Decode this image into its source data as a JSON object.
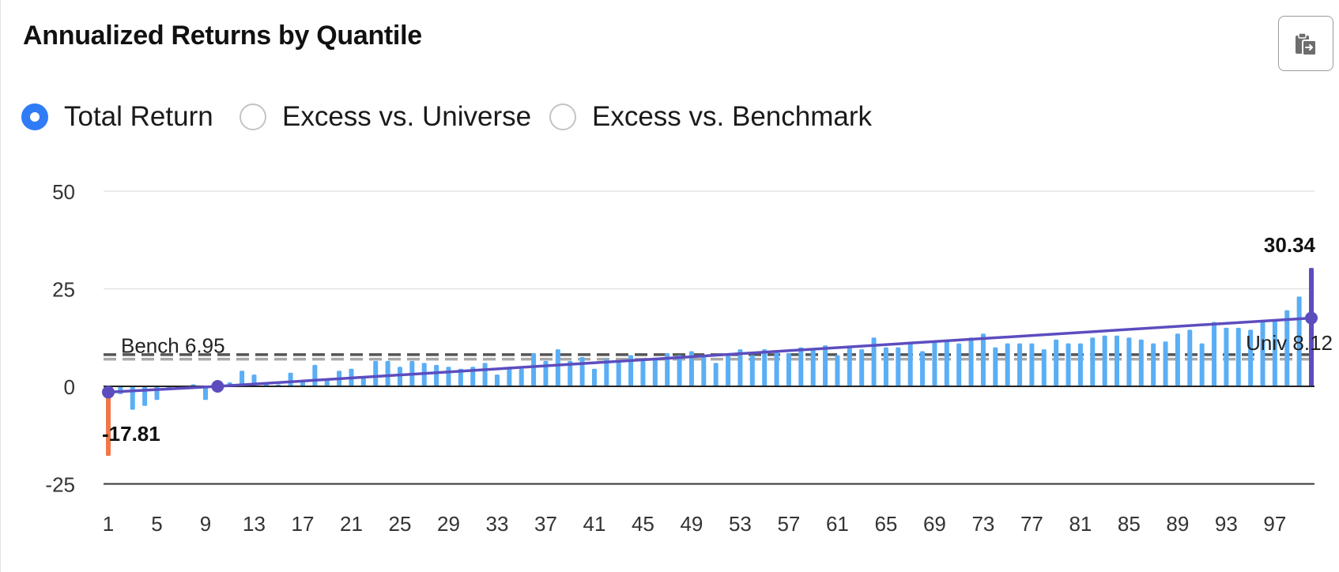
{
  "header": {
    "title": "Annualized Returns by Quantile"
  },
  "copy_icon": "clipboard-copy-icon",
  "radios": [
    {
      "label": "Total Return",
      "checked": true
    },
    {
      "label": "Excess vs. Universe",
      "checked": false
    },
    {
      "label": "Excess vs. Benchmark",
      "checked": false
    }
  ],
  "colors": {
    "bar": "#5aaef5",
    "bar_min": "#f07848",
    "bar_max": "#5c4dbf",
    "trend": "#5c4dbf",
    "bench_line": "#a8a8a8",
    "univ_line": "#555555",
    "grid": "#e4e4e4",
    "radio_accent": "#2f7cf6"
  },
  "chart_data": {
    "type": "bar",
    "title": "Annualized Returns by Quantile",
    "xlabel": "",
    "ylabel": "",
    "ylim": [
      -25,
      50
    ],
    "yticks": [
      50,
      25,
      0,
      -25
    ],
    "x": [
      1,
      2,
      3,
      4,
      5,
      6,
      7,
      8,
      9,
      10,
      11,
      12,
      13,
      14,
      15,
      16,
      17,
      18,
      19,
      20,
      21,
      22,
      23,
      24,
      25,
      26,
      27,
      28,
      29,
      30,
      31,
      32,
      33,
      34,
      35,
      36,
      37,
      38,
      39,
      40,
      41,
      42,
      43,
      44,
      45,
      46,
      47,
      48,
      49,
      50,
      51,
      52,
      53,
      54,
      55,
      56,
      57,
      58,
      59,
      60,
      61,
      62,
      63,
      64,
      65,
      66,
      67,
      68,
      69,
      70,
      71,
      72,
      73,
      74,
      75,
      76,
      77,
      78,
      79,
      80,
      81,
      82,
      83,
      84,
      85,
      86,
      87,
      88,
      89,
      90,
      91,
      92,
      93,
      94,
      95,
      96,
      97,
      98,
      99,
      100
    ],
    "xtick_labels": [
      "1",
      "5",
      "9",
      "13",
      "17",
      "21",
      "25",
      "29",
      "33",
      "37",
      "41",
      "45",
      "49",
      "53",
      "57",
      "61",
      "65",
      "69",
      "73",
      "77",
      "81",
      "85",
      "89",
      "93",
      "97"
    ],
    "values": [
      -17.81,
      -2.0,
      -6.0,
      -5.0,
      -3.5,
      -1.0,
      -0.5,
      0.5,
      -3.5,
      0.5,
      1.0,
      4.0,
      3.0,
      1.0,
      0.5,
      3.5,
      1.5,
      5.5,
      2.0,
      4.0,
      4.5,
      2.5,
      6.5,
      6.5,
      5.0,
      6.5,
      6.0,
      5.5,
      5.0,
      4.5,
      5.0,
      6.0,
      3.0,
      5.0,
      4.5,
      8.5,
      6.5,
      9.5,
      6.5,
      7.5,
      4.5,
      7.0,
      6.5,
      8.0,
      6.5,
      7.0,
      8.5,
      8.0,
      9.0,
      8.0,
      6.0,
      8.0,
      9.5,
      8.0,
      9.5,
      9.0,
      8.5,
      10.0,
      9.5,
      10.5,
      8.0,
      10.0,
      9.5,
      12.5,
      10.0,
      10.0,
      11.0,
      9.0,
      11.5,
      12.0,
      11.0,
      12.5,
      13.5,
      10.0,
      11.0,
      11.0,
      11.0,
      9.5,
      12.0,
      11.0,
      11.0,
      12.5,
      13.0,
      13.0,
      12.5,
      12.0,
      11.0,
      11.5,
      13.5,
      14.5,
      11.0,
      16.5,
      15.0,
      15.0,
      14.5,
      16.5,
      17.0,
      19.5,
      23.0,
      30.34
    ],
    "annotations": {
      "min_label": "-17.81",
      "max_label": "30.34",
      "bench_label": "Bench 6.95",
      "univ_label": "Univ 8.12"
    },
    "reference_lines": [
      {
        "name": "Bench",
        "value": 6.95,
        "style": "dashed"
      },
      {
        "name": "Univ",
        "value": 8.12,
        "style": "dashed"
      }
    ],
    "trend_line": {
      "points": [
        [
          1,
          -1.5
        ],
        [
          10,
          0.0
        ],
        [
          100,
          17.5
        ]
      ]
    },
    "grid": true,
    "legend": "none"
  }
}
